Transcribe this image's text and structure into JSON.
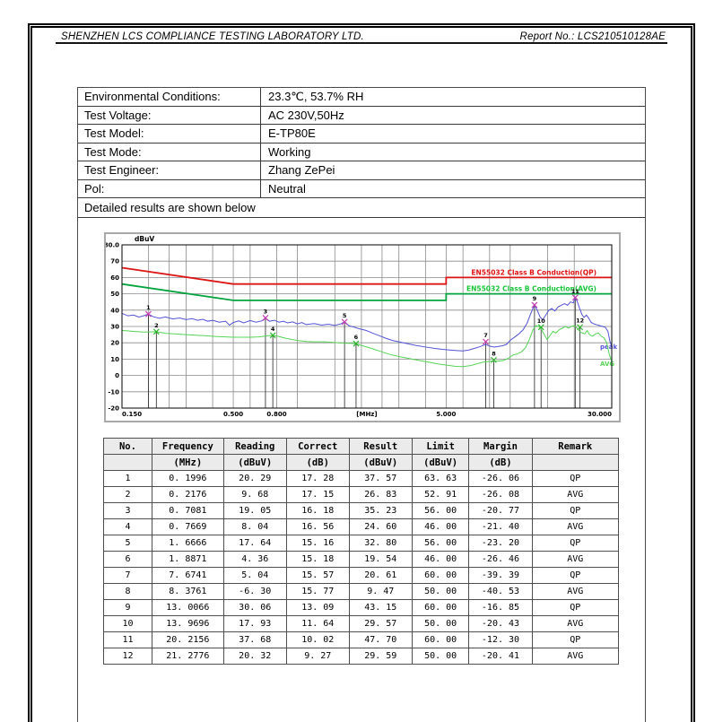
{
  "header": {
    "lab_name": "SHENZHEN LCS COMPLIANCE TESTING LABORATORY LTD.",
    "report_no": "Report No.: LCS210510128AE"
  },
  "conditions": {
    "rows": [
      {
        "label": "Environmental Conditions:",
        "value": "23.3℃, 53.7% RH"
      },
      {
        "label": "Test Voltage:",
        "value": "AC 230V,50Hz"
      },
      {
        "label": "Test Model:",
        "value": "E-TP80E"
      },
      {
        "label": "Test Mode:",
        "value": "Working"
      },
      {
        "label": "Test Engineer:",
        "value": "Zhang ZePei"
      },
      {
        "label": "Pol:",
        "value": "Neutral"
      }
    ],
    "note": "Detailed results are shown below"
  },
  "chart_data": {
    "type": "line",
    "x_axis": {
      "scale": "log",
      "min": 0.15,
      "max": 30,
      "ticks": [
        {
          "label": "0.150",
          "f": 0.15,
          "anchor": "start"
        },
        {
          "label": "0.500",
          "f": 0.5,
          "anchor": "middle"
        },
        {
          "label": "0.800",
          "f": 0.8,
          "anchor": "middle"
        },
        {
          "label": "[MHz]",
          "f": 2.12,
          "anchor": "middle"
        },
        {
          "label": "5.000",
          "f": 5.0,
          "anchor": "middle"
        },
        {
          "label": "30.000",
          "f": 30,
          "anchor": "end"
        }
      ]
    },
    "y_axis": {
      "min": -20,
      "max": 80,
      "unit": "dBuV",
      "ticks": [
        {
          "label": "80.0",
          "v": 80
        },
        {
          "label": "70",
          "v": 70
        },
        {
          "label": "60",
          "v": 60
        },
        {
          "label": "50",
          "v": 50
        },
        {
          "label": "40",
          "v": 40
        },
        {
          "label": "30",
          "v": 30
        },
        {
          "label": "20",
          "v": 20
        },
        {
          "label": "10",
          "v": 10
        },
        {
          "label": "0",
          "v": 0
        },
        {
          "label": "-10",
          "v": -10
        },
        {
          "label": "-20",
          "v": -20
        }
      ]
    },
    "grid_freqs": [
      0.2,
      0.25,
      0.3,
      0.4,
      0.5,
      0.6,
      0.8,
      1,
      1.5,
      2,
      2.5,
      3,
      4,
      5,
      6,
      8,
      10,
      15,
      20
    ],
    "grid_color": "#8a8a8a",
    "limits": [
      {
        "name": "EN55032 Class B Conduction(QP)",
        "color": "#dd1414",
        "text_color": "#e01010",
        "points": [
          [
            0.15,
            66
          ],
          [
            0.5,
            56
          ],
          [
            5,
            56
          ],
          [
            5,
            60
          ],
          [
            30,
            60
          ]
        ],
        "label_v": 61.6
      },
      {
        "name": "EN55032 Class B Conduction(AVG)",
        "color": "#00a33c",
        "text_color": "#17c437",
        "points": [
          [
            0.15,
            56
          ],
          [
            0.5,
            46
          ],
          [
            5,
            46
          ],
          [
            5,
            50
          ],
          [
            30,
            50
          ]
        ],
        "label_v": 51.6
      }
    ],
    "series": [
      {
        "name": "peak",
        "color": "#5353d6",
        "label_v": 17.5,
        "points": [
          [
            0.15,
            38
          ],
          [
            0.16,
            36.5
          ],
          [
            0.17,
            37
          ],
          [
            0.18,
            35.8
          ],
          [
            0.19,
            36.6
          ],
          [
            0.1996,
            37.6
          ],
          [
            0.21,
            36
          ],
          [
            0.225,
            35
          ],
          [
            0.24,
            35.8
          ],
          [
            0.26,
            34.6
          ],
          [
            0.28,
            35.2
          ],
          [
            0.3,
            34.2
          ],
          [
            0.32,
            34.8
          ],
          [
            0.34,
            33.8
          ],
          [
            0.36,
            34.4
          ],
          [
            0.38,
            33.2
          ],
          [
            0.4,
            33.8
          ],
          [
            0.43,
            32.6
          ],
          [
            0.46,
            33.2
          ],
          [
            0.48,
            30.8
          ],
          [
            0.5,
            32.4
          ],
          [
            0.53,
            33.4
          ],
          [
            0.56,
            32.2
          ],
          [
            0.6,
            33.6
          ],
          [
            0.64,
            32.6
          ],
          [
            0.68,
            33.4
          ],
          [
            0.7081,
            35.2
          ],
          [
            0.74,
            33.2
          ],
          [
            0.78,
            33.8
          ],
          [
            0.82,
            32.6
          ],
          [
            0.86,
            33.2
          ],
          [
            0.9,
            32.2
          ],
          [
            0.95,
            32.8
          ],
          [
            1.0,
            31.6
          ],
          [
            1.05,
            32.4
          ],
          [
            1.1,
            31.2
          ],
          [
            1.2,
            31.8
          ],
          [
            1.3,
            30.8
          ],
          [
            1.4,
            31.4
          ],
          [
            1.5,
            30.6
          ],
          [
            1.6,
            31.6
          ],
          [
            1.6666,
            32.8
          ],
          [
            1.75,
            30.4
          ],
          [
            1.85,
            29.6
          ],
          [
            1.95,
            28.6
          ],
          [
            2.1,
            27.6
          ],
          [
            2.25,
            26
          ],
          [
            2.4,
            24.6
          ],
          [
            2.6,
            22.8
          ],
          [
            2.8,
            21.4
          ],
          [
            3.0,
            20.6
          ],
          [
            3.3,
            19.4
          ],
          [
            3.6,
            18.4
          ],
          [
            4.0,
            17.4
          ],
          [
            4.4,
            16.6
          ],
          [
            4.8,
            16
          ],
          [
            5.2,
            15.6
          ],
          [
            5.6,
            15.2
          ],
          [
            6.0,
            15
          ],
          [
            6.4,
            15.6
          ],
          [
            6.8,
            16.6
          ],
          [
            7.2,
            17.6
          ],
          [
            7.6741,
            19
          ],
          [
            8.0,
            18
          ],
          [
            8.4,
            17.4
          ],
          [
            8.8,
            17.8
          ],
          [
            9.2,
            18.2
          ],
          [
            9.6,
            19
          ],
          [
            10.0,
            21.5
          ],
          [
            10.5,
            23.5
          ],
          [
            11.0,
            25.5
          ],
          [
            11.5,
            28
          ],
          [
            12.0,
            32
          ],
          [
            12.5,
            38
          ],
          [
            13.0066,
            43.2
          ],
          [
            13.4,
            40
          ],
          [
            13.8,
            36
          ],
          [
            14.2,
            34
          ],
          [
            14.7,
            37
          ],
          [
            15.2,
            40
          ],
          [
            15.7,
            41
          ],
          [
            16.2,
            39.5
          ],
          [
            16.8,
            42
          ],
          [
            17.4,
            43
          ],
          [
            18.0,
            44
          ],
          [
            18.6,
            43
          ],
          [
            19.2,
            45
          ],
          [
            19.8,
            44.5
          ],
          [
            20.2156,
            47.7
          ],
          [
            20.7,
            45
          ],
          [
            21.2,
            41
          ],
          [
            21.7,
            37.5
          ],
          [
            22.2,
            35.5
          ],
          [
            22.8,
            37
          ],
          [
            23.4,
            35
          ],
          [
            24.0,
            32.5
          ],
          [
            24.8,
            31.5
          ],
          [
            25.6,
            31
          ],
          [
            26.4,
            30.5
          ],
          [
            27.2,
            30
          ],
          [
            28.0,
            29.5
          ],
          [
            28.8,
            27
          ],
          [
            29.4,
            21
          ],
          [
            30,
            17.5
          ]
        ]
      },
      {
        "name": "AVG",
        "color": "#55d455",
        "label_v": 7,
        "points": [
          [
            0.15,
            27.6
          ],
          [
            0.17,
            27
          ],
          [
            0.19,
            26.6
          ],
          [
            0.2176,
            26.8
          ],
          [
            0.24,
            25.8
          ],
          [
            0.27,
            25.4
          ],
          [
            0.3,
            25
          ],
          [
            0.34,
            24.6
          ],
          [
            0.38,
            24.2
          ],
          [
            0.42,
            23.8
          ],
          [
            0.46,
            23.6
          ],
          [
            0.5,
            23.4
          ],
          [
            0.55,
            23.4
          ],
          [
            0.6,
            23.4
          ],
          [
            0.66,
            23.6
          ],
          [
            0.72,
            24.2
          ],
          [
            0.7669,
            24.6
          ],
          [
            0.82,
            23.8
          ],
          [
            0.88,
            22.8
          ],
          [
            0.95,
            22
          ],
          [
            1.0,
            21.4
          ],
          [
            1.1,
            20.8
          ],
          [
            1.2,
            20.6
          ],
          [
            1.35,
            20.6
          ],
          [
            1.5,
            20.2
          ],
          [
            1.65,
            19.8
          ],
          [
            1.8,
            19.6
          ],
          [
            1.8871,
            19.5
          ],
          [
            2.0,
            18.4
          ],
          [
            2.2,
            16.8
          ],
          [
            2.45,
            14.8
          ],
          [
            2.7,
            13
          ],
          [
            3.0,
            11.6
          ],
          [
            3.4,
            10.2
          ],
          [
            3.8,
            9
          ],
          [
            4.2,
            8
          ],
          [
            4.6,
            7
          ],
          [
            5.0,
            6.4
          ],
          [
            5.5,
            5.6
          ],
          [
            6.0,
            5.4
          ],
          [
            6.5,
            6
          ],
          [
            7.0,
            7.2
          ],
          [
            7.5,
            8.2
          ],
          [
            8.0,
            8.6
          ],
          [
            8.3761,
            9
          ],
          [
            8.8,
            8.8
          ],
          [
            9.3,
            9.2
          ],
          [
            9.8,
            10.5
          ],
          [
            10.3,
            12.5
          ],
          [
            10.8,
            13.2
          ],
          [
            11.3,
            14.5
          ],
          [
            11.8,
            17
          ],
          [
            12.3,
            22
          ],
          [
            12.8,
            28
          ],
          [
            13.2,
            30.5
          ],
          [
            13.6,
            30
          ],
          [
            13.9696,
            28.5
          ],
          [
            14.4,
            25.5
          ],
          [
            14.9,
            22
          ],
          [
            15.4,
            24.5
          ],
          [
            15.9,
            27
          ],
          [
            16.4,
            26
          ],
          [
            17.0,
            28
          ],
          [
            17.6,
            29
          ],
          [
            18.2,
            30
          ],
          [
            18.8,
            29
          ],
          [
            19.4,
            30
          ],
          [
            20.0,
            30.5
          ],
          [
            20.6,
            29
          ],
          [
            21.2,
            27
          ],
          [
            21.8,
            26
          ],
          [
            22.4,
            25.5
          ],
          [
            23.0,
            27.5
          ],
          [
            23.6,
            25
          ],
          [
            24.4,
            24
          ],
          [
            25.2,
            25.5
          ],
          [
            26.0,
            26
          ],
          [
            26.8,
            24
          ],
          [
            27.6,
            23
          ],
          [
            28.4,
            20
          ],
          [
            29.2,
            13
          ],
          [
            30,
            8.5
          ]
        ]
      }
    ],
    "markers": [
      {
        "no": 1,
        "freq": 0.1996,
        "value": 37.57,
        "kind": "QP"
      },
      {
        "no": 2,
        "freq": 0.2176,
        "value": 26.83,
        "kind": "AVG"
      },
      {
        "no": 3,
        "freq": 0.7081,
        "value": 35.23,
        "kind": "QP"
      },
      {
        "no": 4,
        "freq": 0.7669,
        "value": 24.6,
        "kind": "AVG"
      },
      {
        "no": 5,
        "freq": 1.6666,
        "value": 32.8,
        "kind": "QP"
      },
      {
        "no": 6,
        "freq": 1.8871,
        "value": 19.54,
        "kind": "AVG"
      },
      {
        "no": 7,
        "freq": 7.6741,
        "value": 20.61,
        "kind": "QP"
      },
      {
        "no": 8,
        "freq": 8.3761,
        "value": 9.47,
        "kind": "AVG"
      },
      {
        "no": 9,
        "freq": 13.0066,
        "value": 43.15,
        "kind": "QP"
      },
      {
        "no": 10,
        "freq": 13.9696,
        "value": 29.57,
        "kind": "AVG"
      },
      {
        "no": 11,
        "freq": 20.2156,
        "value": 47.7,
        "kind": "QP"
      },
      {
        "no": 12,
        "freq": 21.2776,
        "value": 29.59,
        "kind": "AVG"
      }
    ],
    "marker_colors": {
      "QP": "#c93ab0",
      "AVG": "#2db32d"
    }
  },
  "results_table": {
    "columns": [
      "No.",
      "Frequency",
      "Reading",
      "Correct",
      "Result",
      "Limit",
      "Margin",
      "Remark"
    ],
    "units": [
      "",
      "(MHz)",
      "(dBuV)",
      "(dB)",
      "(dBuV)",
      "(dBuV)",
      "(dB)",
      ""
    ],
    "rows": [
      [
        "1",
        "0. 1996",
        "20. 29",
        "17. 28",
        "37. 57",
        "63. 63",
        "-26. 06",
        "QP"
      ],
      [
        "2",
        "0. 2176",
        "9. 68",
        "17. 15",
        "26. 83",
        "52. 91",
        "-26. 08",
        "AVG"
      ],
      [
        "3",
        "0. 7081",
        "19. 05",
        "16. 18",
        "35. 23",
        "56. 00",
        "-20. 77",
        "QP"
      ],
      [
        "4",
        "0. 7669",
        "8. 04",
        "16. 56",
        "24. 60",
        "46. 00",
        "-21. 40",
        "AVG"
      ],
      [
        "5",
        "1. 6666",
        "17. 64",
        "15. 16",
        "32. 80",
        "56. 00",
        "-23. 20",
        "QP"
      ],
      [
        "6",
        "1. 8871",
        "4. 36",
        "15. 18",
        "19. 54",
        "46. 00",
        "-26. 46",
        "AVG"
      ],
      [
        "7",
        "7. 6741",
        "5. 04",
        "15. 57",
        "20. 61",
        "60. 00",
        "-39. 39",
        "QP"
      ],
      [
        "8",
        "8. 3761",
        "-6. 30",
        "15. 77",
        "9. 47",
        "50. 00",
        "-40. 53",
        "AVG"
      ],
      [
        "9",
        "13. 0066",
        "30. 06",
        "13. 09",
        "43. 15",
        "60. 00",
        "-16. 85",
        "QP"
      ],
      [
        "10",
        "13. 9696",
        "17. 93",
        "11. 64",
        "29. 57",
        "50. 00",
        "-20. 43",
        "AVG"
      ],
      [
        "11",
        "20. 2156",
        "37. 68",
        "10. 02",
        "47. 70",
        "60. 00",
        "-12. 30",
        "QP"
      ],
      [
        "12",
        "21. 2776",
        "20. 32",
        "9. 27",
        "29. 59",
        "50. 00",
        "-20. 41",
        "AVG"
      ]
    ]
  }
}
